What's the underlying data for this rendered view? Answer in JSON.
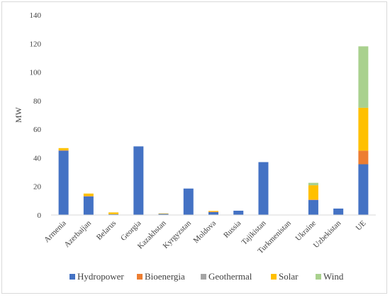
{
  "chart_data": {
    "type": "bar",
    "stacked": true,
    "ylabel": "MW",
    "xlabel": "",
    "ylim": [
      0,
      140
    ],
    "yticks": [
      0,
      20,
      40,
      60,
      80,
      100,
      120,
      140
    ],
    "grid": false,
    "legend_position": "bottom",
    "categories": [
      "Armenia",
      "Azerbaijan",
      "Belarus",
      "Georgia",
      "Kazakhstan",
      "Kyrgyzstan",
      "Moldova",
      "Russia",
      "Tajikistan",
      "Turkmenistan",
      "Ukraine",
      "Uzbekistan",
      "UE"
    ],
    "series": [
      {
        "name": "Hydropower",
        "color": "#4472c4",
        "values": [
          45,
          13,
          0.5,
          48,
          0.8,
          18.5,
          2,
          3,
          37,
          0,
          10.5,
          4.5,
          35.5
        ]
      },
      {
        "name": "Bioenergia",
        "color": "#ed7d31",
        "values": [
          0.3,
          0.3,
          0,
          0,
          0,
          0,
          0.3,
          0,
          0,
          0,
          0.3,
          0,
          9.5
        ]
      },
      {
        "name": "Geothermal",
        "color": "#a5a5a5",
        "values": [
          0,
          0,
          0,
          0,
          0,
          0,
          0,
          0,
          0,
          0,
          0,
          0,
          0
        ]
      },
      {
        "name": "Solar",
        "color": "#ffc000",
        "values": [
          1.5,
          1.7,
          1.3,
          0,
          0.3,
          0,
          0.5,
          0,
          0,
          0,
          10,
          0,
          30
        ]
      },
      {
        "name": "Wind",
        "color": "#a9d18e",
        "values": [
          0,
          0,
          0,
          0,
          0,
          0,
          0,
          0,
          0,
          0,
          1.7,
          0,
          43
        ]
      }
    ]
  }
}
